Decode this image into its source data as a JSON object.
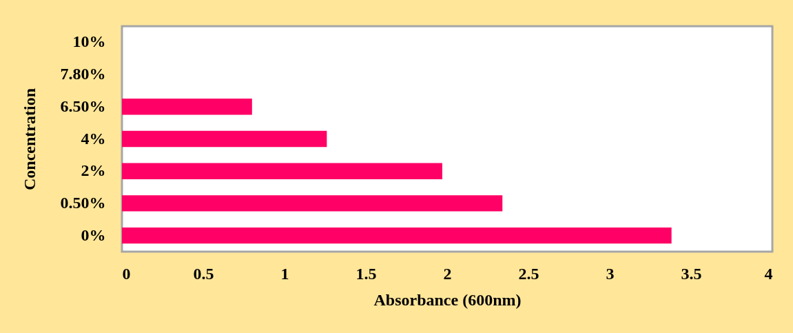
{
  "chart_data": {
    "type": "bar",
    "orientation": "horizontal",
    "xlabel": "Absorbance (600nm)",
    "ylabel": "Concentration",
    "categories": [
      "10%",
      "7.80%",
      "6.50%",
      "4%",
      "2%",
      "0.50%",
      "0%"
    ],
    "values": [
      null,
      null,
      0.8,
      1.26,
      1.97,
      2.34,
      3.38
    ],
    "color": "#ff0066",
    "xlim": [
      0,
      4
    ],
    "xticks": [
      0,
      0.5,
      1,
      1.5,
      2,
      2.5,
      3,
      3.5,
      4
    ],
    "grid": false
  }
}
